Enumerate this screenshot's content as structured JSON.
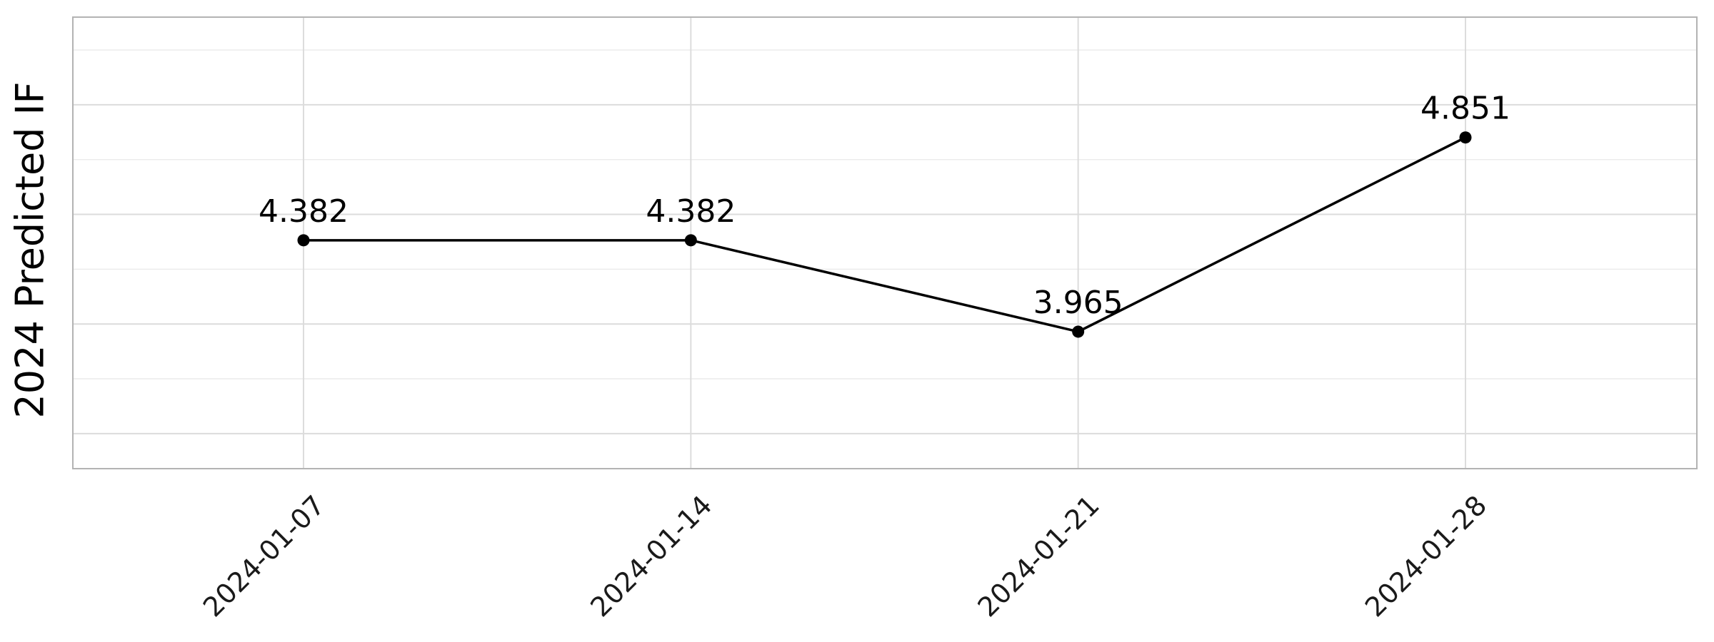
{
  "chart_data": {
    "type": "line",
    "title": "",
    "xlabel": "",
    "ylabel": "2024 Predicted IF",
    "x": [
      "2024-01-07",
      "2024-01-14",
      "2024-01-21",
      "2024-01-28"
    ],
    "series": [
      {
        "values": [
          4.382,
          4.382,
          3.965,
          4.851
        ],
        "labels": [
          "4.382",
          "4.382",
          "3.965",
          "4.851"
        ],
        "color": "#000000"
      }
    ],
    "ylim": [
      3.34,
      5.4
    ],
    "y_major_ticks": [
      3.5,
      4.0,
      4.5,
      5.0
    ],
    "y_minor_ticks": [
      3.75,
      4.25,
      4.75,
      5.25
    ],
    "y_tick_labels_shown": false,
    "grid": true,
    "legend": "none",
    "x_tick_rotation": -45
  }
}
